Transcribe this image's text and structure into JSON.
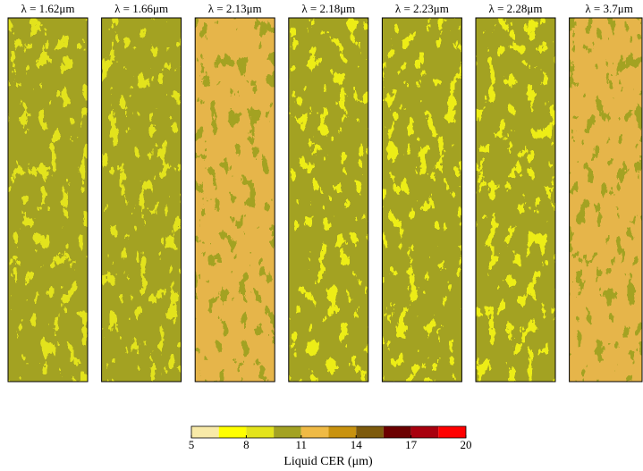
{
  "chart_data": {
    "type": "map_panels",
    "panels": [
      {
        "title": "λ = 1.62μm",
        "colors": [
          "#a3a222",
          "#e3e31c"
        ]
      },
      {
        "title": "λ = 1.66μm",
        "colors": [
          "#a3a222",
          "#e3e31c"
        ]
      },
      {
        "title": "λ = 2.13μm",
        "colors": [
          "#e6b54a",
          "#a3a222"
        ]
      },
      {
        "title": "λ = 2.18μm",
        "colors": [
          "#a3a222",
          "#eded12"
        ]
      },
      {
        "title": "λ = 2.23μm",
        "colors": [
          "#a3a222",
          "#eded12"
        ]
      },
      {
        "title": "λ = 2.28μm",
        "colors": [
          "#a3a222",
          "#eded12"
        ]
      },
      {
        "title": "λ = 3.7μm",
        "colors": [
          "#e6b54a",
          "#a3a222"
        ]
      }
    ],
    "colorbar": {
      "label": "Liquid CER (μm)",
      "bounds": [
        5,
        6.5,
        8,
        9.5,
        11,
        12.5,
        14,
        15.5,
        17,
        18.5,
        20
      ],
      "colors": [
        "#f8eaa8",
        "#ffff00",
        "#e3e31c",
        "#a3a222",
        "#efba45",
        "#c8920f",
        "#7d5a0c",
        "#6b0000",
        "#a8000e",
        "#ff0000"
      ],
      "xlim": [
        5,
        20
      ],
      "xticks": [
        5,
        8,
        11,
        14,
        17,
        20
      ]
    }
  }
}
